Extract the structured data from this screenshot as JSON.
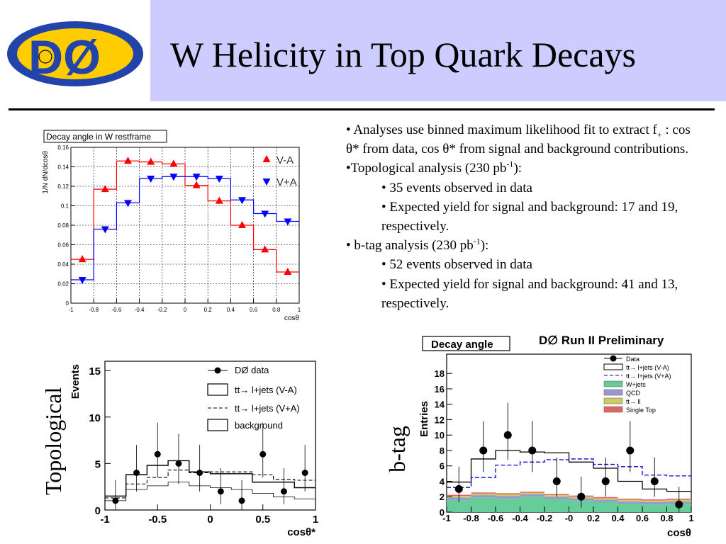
{
  "slide": {
    "title": "W Helicity in Top Quark Decays",
    "logo_text": "DØ",
    "topological_label": "Topological",
    "btag_label": "b-tag"
  },
  "bullets": {
    "b1_pre": "• Analyses use binned maximum likelihood fit to extract f",
    "b1_sub": "+",
    "b1_post": " : cos θ* from data, cos θ* from signal and background contributions.",
    "b2_pre": "•Topological analysis (230 pb",
    "b2_sup": "-1",
    "b2_post": "):",
    "b2_i1": "• 35 events observed in data",
    "b2_i2": "• Expected yield for signal and background: 17 and 19, respectively.",
    "b3_pre": "• b-tag analysis (230 pb",
    "b3_sup": "-1",
    "b3_post": "):",
    "b3_i1": "• 52 events observed in data",
    "b3_i2": "• Expected yield for signal and background: 41 and 13, respectively."
  },
  "chart_data": [
    {
      "type": "line",
      "title": "Decay angle in W restframe",
      "xlabel": "cosθ",
      "ylabel": "1/N dN/dcosθ",
      "xlim": [
        -1,
        1
      ],
      "ylim": [
        0,
        0.16
      ],
      "grid": true,
      "legend": "top-right",
      "x_ticks": [
        "-1",
        "-0.8",
        "-0.6",
        "-0.4",
        "-0.2",
        "0",
        "0.2",
        "0.4",
        "0.6",
        "0.8",
        "1"
      ],
      "y_ticks": [
        "0",
        "0.02",
        "0.04",
        "0.06",
        "0.08",
        "0.1",
        "0.12",
        "0.14",
        "0.16"
      ],
      "bin_edges": [
        -1,
        -0.8,
        -0.6,
        -0.4,
        -0.2,
        0,
        0.2,
        0.4,
        0.6,
        0.8,
        1
      ],
      "series": [
        {
          "name": "V-A",
          "color": "#ff0000",
          "marker": "triangle-up",
          "x": [
            -0.9,
            -0.7,
            -0.5,
            -0.3,
            -0.1,
            0.1,
            0.3,
            0.5,
            0.7,
            0.9
          ],
          "values": [
            0.045,
            0.117,
            0.146,
            0.145,
            0.143,
            0.121,
            0.105,
            0.08,
            0.055,
            0.032
          ]
        },
        {
          "name": "V+A",
          "color": "#0000ff",
          "marker": "triangle-down",
          "x": [
            -0.9,
            -0.7,
            -0.5,
            -0.3,
            -0.1,
            0.1,
            0.3,
            0.5,
            0.7,
            0.9
          ],
          "values": [
            0.024,
            0.076,
            0.103,
            0.128,
            0.13,
            0.13,
            0.128,
            0.106,
            0.092,
            0.084
          ]
        }
      ]
    },
    {
      "type": "line",
      "title": "",
      "xlabel": "cosθ*",
      "ylabel": "Events",
      "xlim": [
        -1,
        1
      ],
      "ylim": [
        0,
        16
      ],
      "legend": "top-right",
      "x_ticks": [
        "-1",
        "-0.5",
        "0",
        "0.5",
        "1"
      ],
      "y_ticks": [
        "0",
        "5",
        "10",
        "15"
      ],
      "bin_edges": [
        -1,
        -0.8,
        -0.6,
        -0.4,
        -0.2,
        0,
        0.2,
        0.4,
        0.6,
        0.8,
        1
      ],
      "data": {
        "name": "DØ data",
        "x": [
          -0.9,
          -0.7,
          -0.5,
          -0.3,
          -0.1,
          0.1,
          0.3,
          0.5,
          0.7,
          0.9
        ],
        "values": [
          1,
          4,
          6,
          5,
          4,
          2,
          1,
          6,
          2,
          4
        ],
        "err_lo": [
          1,
          2,
          2.5,
          2.2,
          2,
          1.4,
          1,
          2.5,
          1.4,
          2
        ],
        "err_hi": [
          2.2,
          3,
          3.4,
          3.2,
          3,
          2.5,
          2.2,
          3.4,
          2.5,
          3
        ]
      },
      "series": [
        {
          "name": "tt→ l+jets (V-A)",
          "style": "solid",
          "values": [
            1.5,
            3.8,
            4.8,
            5.3,
            4.1,
            3.9,
            3.9,
            3.0,
            3.0,
            2.4
          ]
        },
        {
          "name": "tt→ l+jets (V+A)",
          "style": "dashed",
          "values": [
            1.3,
            2.8,
            3.5,
            4.3,
            4.0,
            4.1,
            4.1,
            3.8,
            3.3,
            3.2
          ]
        },
        {
          "name": "background",
          "style": "solid-thin",
          "values": [
            1.0,
            2.2,
            2.6,
            3.0,
            2.6,
            2.4,
            2.2,
            1.8,
            1.4,
            1.2
          ]
        }
      ]
    },
    {
      "type": "line",
      "title": "Decay angle",
      "annotation": "D∅ Run II Preliminary",
      "xlabel": "cosθ",
      "ylabel": "Entries",
      "xlim": [
        -1,
        1
      ],
      "ylim": [
        0,
        20.5
      ],
      "legend": "top-right",
      "x_ticks": [
        "-1",
        "-0.8",
        "-0.6",
        "-0.4",
        "-0.2",
        "-0",
        "0.2",
        "0.4",
        "0.6",
        "0.8",
        "1"
      ],
      "y_ticks": [
        "0",
        "2",
        "4",
        "6",
        "8",
        "10",
        "12",
        "14",
        "16",
        "18"
      ],
      "bin_edges": [
        -1,
        -0.8,
        -0.6,
        -0.4,
        -0.2,
        0,
        0.2,
        0.4,
        0.6,
        0.8,
        1
      ],
      "data": {
        "name": "Data",
        "x": [
          -0.9,
          -0.7,
          -0.5,
          -0.3,
          -0.1,
          0.1,
          0.3,
          0.5,
          0.7,
          0.9
        ],
        "values": [
          3,
          8,
          10,
          8,
          4,
          2,
          4,
          8,
          4,
          1
        ],
        "err_lo": [
          1.7,
          2.8,
          3.2,
          2.8,
          2,
          1.4,
          2,
          2.8,
          2,
          1
        ],
        "err_hi": [
          2.9,
          3.8,
          4.2,
          3.8,
          3.1,
          2.6,
          3.1,
          3.8,
          3.1,
          2.3
        ]
      },
      "series": [
        {
          "name": "tt→ l+jets (V-A)",
          "style": "solid",
          "color": "#000000",
          "values": [
            3.9,
            6.9,
            8.0,
            7.8,
            7.7,
            6.5,
            5.7,
            4.0,
            3.0,
            2.7
          ]
        },
        {
          "name": "tt→ l+jets (V+A)",
          "style": "dashed",
          "color": "#0000cc",
          "values": [
            3.2,
            4.5,
            6.1,
            6.5,
            6.8,
            6.9,
            6.2,
            5.9,
            4.8,
            4.7
          ]
        }
      ],
      "stack": [
        {
          "name": "W+jets",
          "color": "#66cc99",
          "values": [
            1.6,
            1.9,
            1.8,
            2.0,
            1.7,
            1.5,
            1.3,
            1.1,
            1.0,
            1.1
          ]
        },
        {
          "name": "QCD",
          "color": "#9999cc",
          "values": [
            0.3,
            0.3,
            0.3,
            0.3,
            0.3,
            0.3,
            0.3,
            0.3,
            0.3,
            0.3
          ]
        },
        {
          "name": "tt→ ll",
          "color": "#cccc66",
          "values": [
            0.2,
            0.2,
            0.2,
            0.2,
            0.2,
            0.2,
            0.2,
            0.2,
            0.2,
            0.2
          ]
        },
        {
          "name": "Single Top",
          "color": "#e06666",
          "values": [
            0.15,
            0.15,
            0.15,
            0.15,
            0.15,
            0.15,
            0.15,
            0.15,
            0.15,
            0.15
          ]
        }
      ]
    }
  ]
}
